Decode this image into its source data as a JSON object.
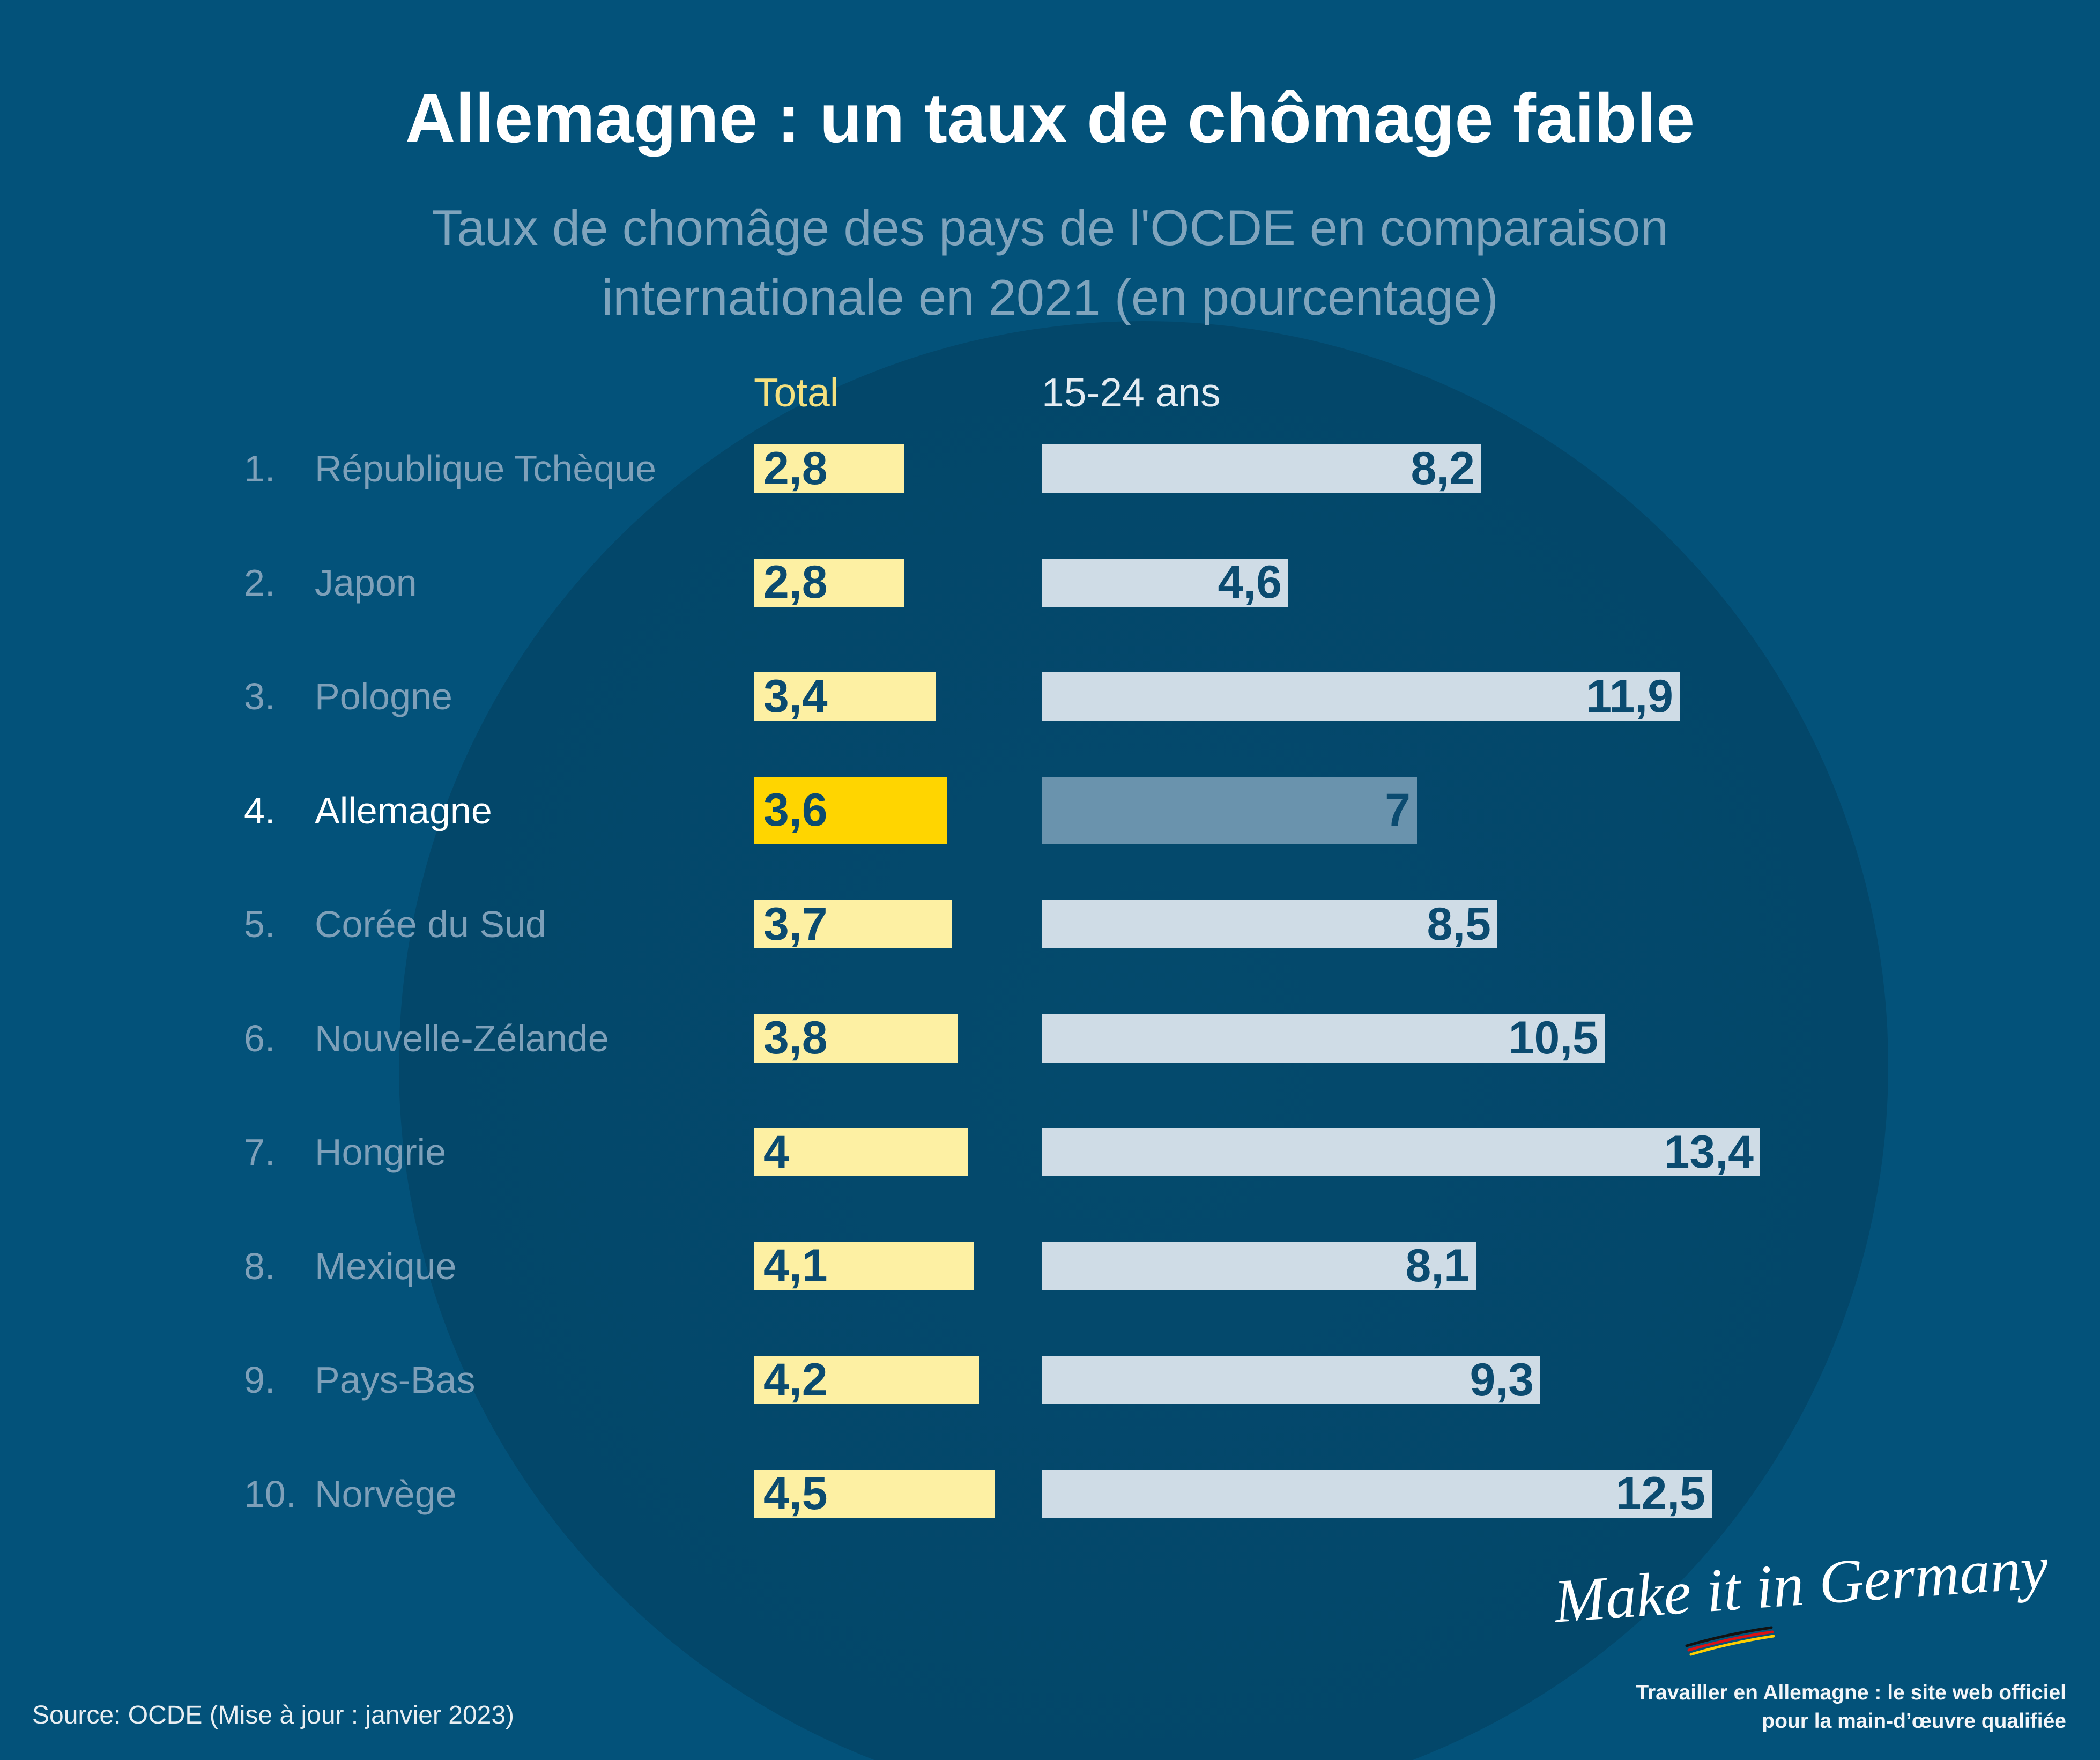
{
  "colors": {
    "background": "#03527a",
    "circle": "#04496c",
    "title": "#ffffff",
    "subtitle": "#7fa4bd",
    "label": "#7ea0b9",
    "label_highlight": "#ffffff",
    "total_header": "#f4e07f",
    "youth_header": "#e4ecf2",
    "total_bar": "#fdf0a3",
    "total_bar_highlight": "#ffd500",
    "youth_bar": "#cfdce6",
    "youth_bar_highlight": "#6a93ad",
    "value_text": "#0b4b70"
  },
  "chart_data": {
    "type": "bar",
    "title": "Allemagne : un taux de chômage faible",
    "subtitle": [
      "Taux de chomâge des pays de l'OCDE en comparaison",
      "internationale en 2021 (en pourcentage)"
    ],
    "ranks": [
      "1.",
      "2.",
      "3.",
      "4.",
      "5.",
      "6.",
      "7.",
      "8.",
      "9.",
      "10."
    ],
    "categories": [
      "République Tchèque",
      "Japon",
      "Pologne",
      "Allemagne",
      "Corée du Sud",
      "Nouvelle-Zélande",
      "Hongrie",
      "Mexique",
      "Pays-Bas",
      "Norvège"
    ],
    "highlight": "Allemagne",
    "series": [
      {
        "name": "Total",
        "values": [
          2.8,
          2.8,
          3.4,
          3.6,
          3.7,
          3.8,
          4,
          4.1,
          4.2,
          4.5
        ],
        "labels": [
          "2,8",
          "2,8",
          "3,4",
          "3,6",
          "3,7",
          "3,8",
          "4",
          "4,1",
          "4,2",
          "4,5"
        ]
      },
      {
        "name": "15-24 ans",
        "values": [
          8.2,
          4.6,
          11.9,
          7,
          8.5,
          10.5,
          13.4,
          8.1,
          9.3,
          12.5
        ],
        "labels": [
          "8,2",
          "4,6",
          "11,9",
          "7",
          "8,5",
          "10,5",
          "13,4",
          "8,1",
          "9,3",
          "12,5"
        ]
      }
    ]
  },
  "source": "Source: OCDE (Mise à jour : janvier 2023)",
  "footer": {
    "line1": "Travailler en Allemagne : le site web officiel",
    "line2": "pour la main-d’œuvre qualifiée"
  },
  "logo": {
    "text": "Make it in Germany"
  }
}
